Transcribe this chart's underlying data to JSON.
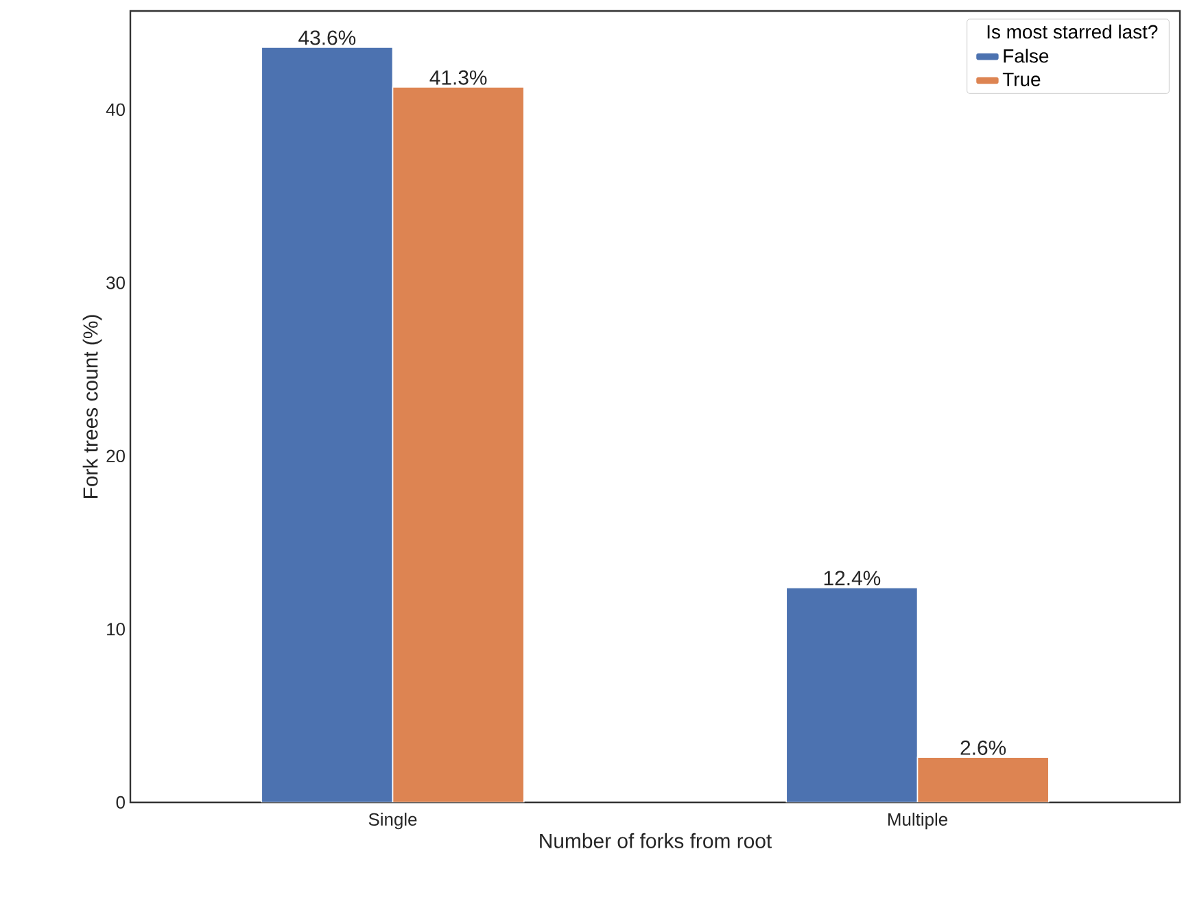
{
  "chart_data": {
    "type": "bar",
    "xlabel": "Number of forks from root",
    "ylabel": "Fork trees count (%)",
    "legend_title": "Is most starred last?",
    "categories": [
      "Single",
      "Multiple"
    ],
    "series": [
      {
        "name": "False",
        "color": "#4c72b0",
        "values": [
          43.6,
          12.4
        ],
        "value_labels": [
          "43.6%",
          "12.4%"
        ]
      },
      {
        "name": "True",
        "color": "#dd8452",
        "values": [
          41.3,
          2.6
        ],
        "value_labels": [
          "41.3%",
          "2.6%"
        ]
      }
    ],
    "ylim": [
      0,
      45.7
    ],
    "yticks": [
      0,
      10,
      20,
      30,
      40
    ],
    "legend": "top right",
    "grid": false
  }
}
